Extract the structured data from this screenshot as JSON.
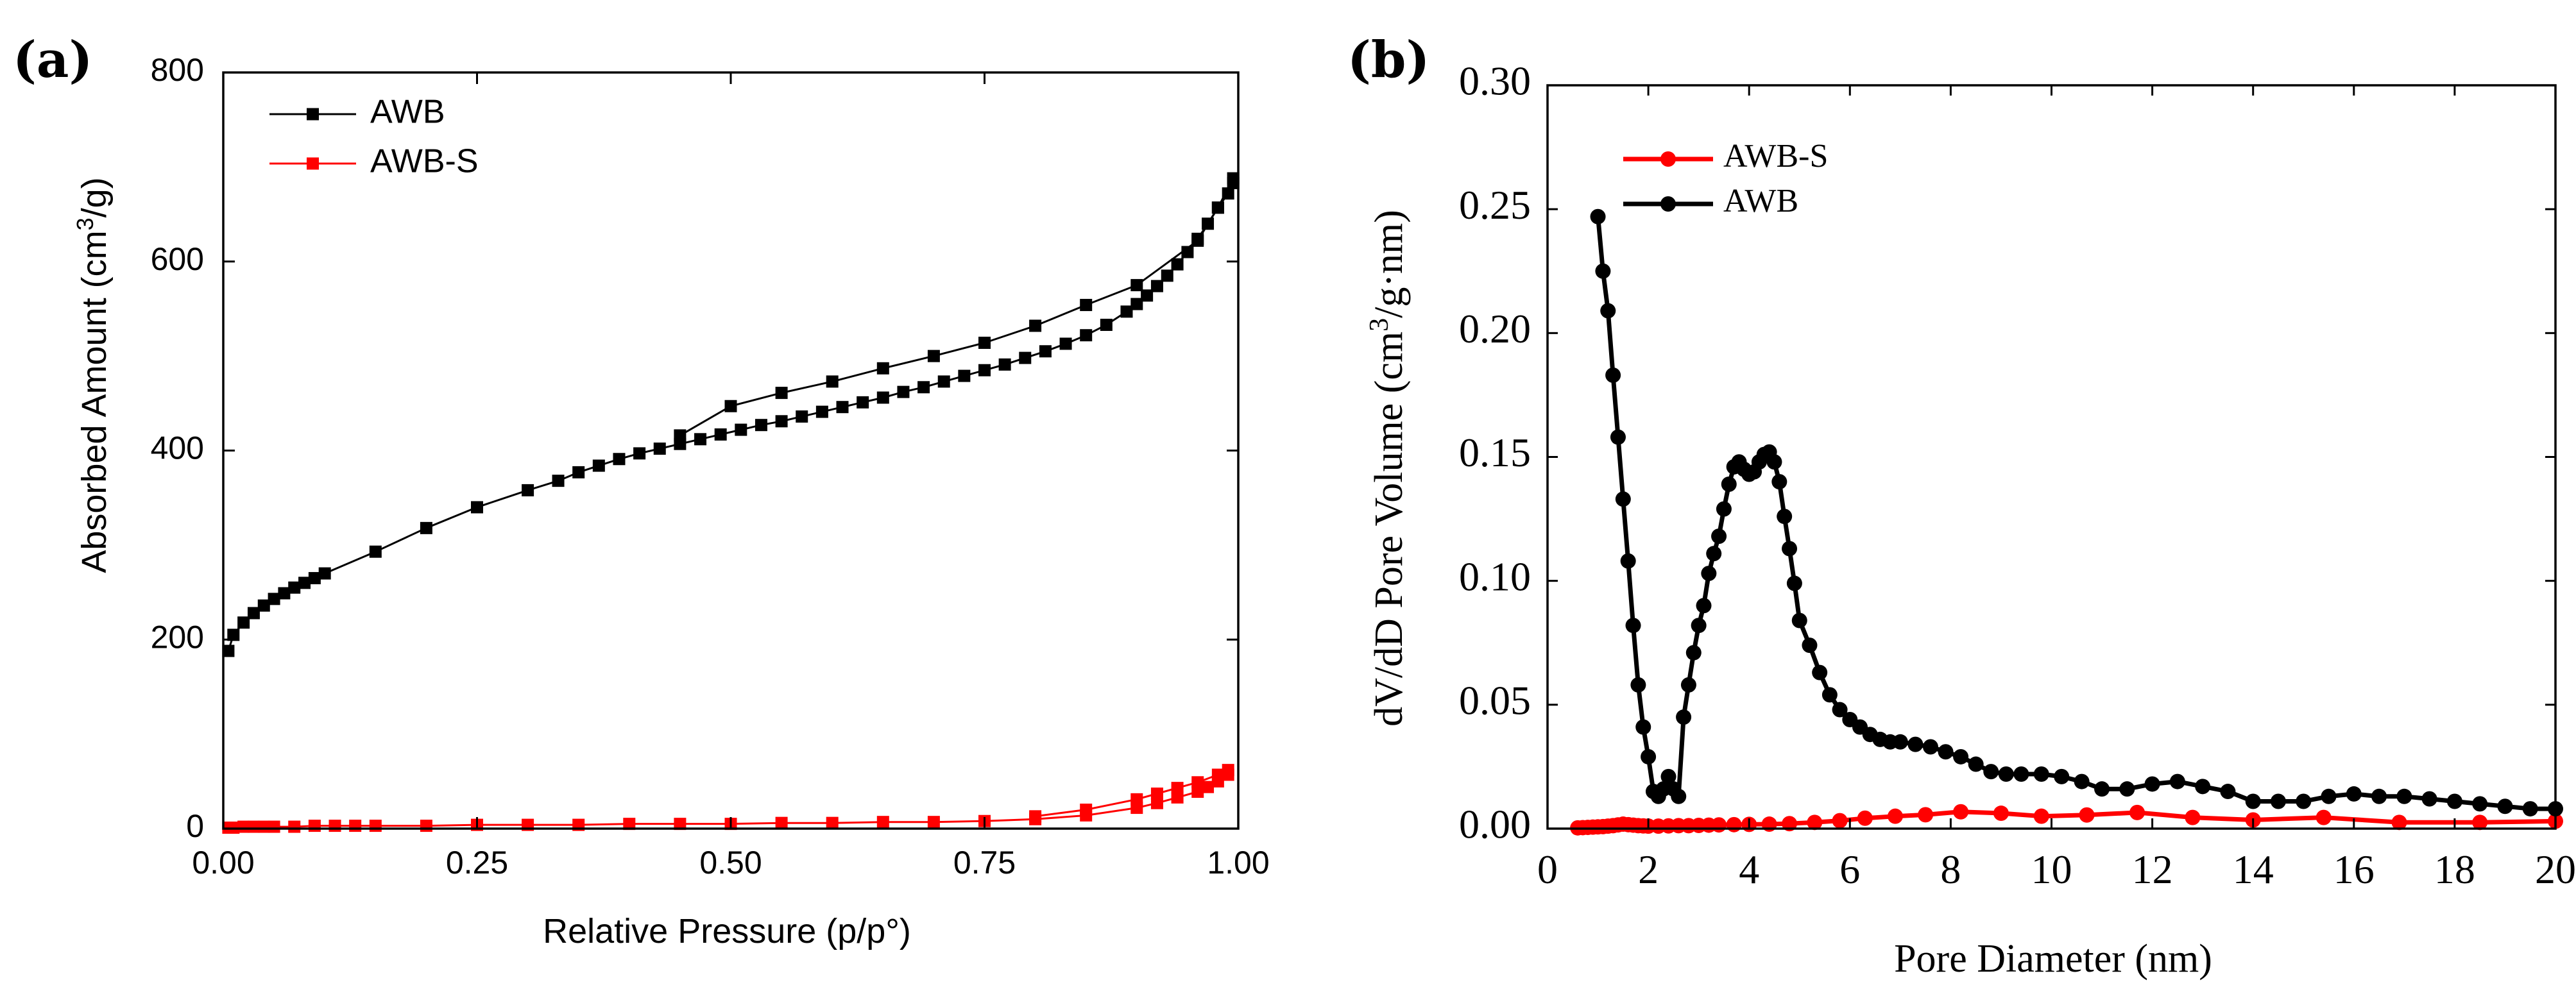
{
  "chart_data": [
    {
      "panel_label": "(a)",
      "type": "line",
      "title": "",
      "xlabel": "Relative Pressure (p/p°)",
      "ylabel_main": "Absorbed Amount (cm",
      "ylabel_sup": "3",
      "ylabel_tail": "/g)",
      "xlim": [
        0,
        1
      ],
      "ylim": [
        0,
        800
      ],
      "xticks": [
        0,
        0.25,
        0.5,
        0.75,
        1.0
      ],
      "xtick_labels": [
        "0.00",
        "0.25",
        "0.50",
        "0.75",
        "1.00"
      ],
      "yticks": [
        0,
        200,
        400,
        600,
        800
      ],
      "ytick_labels": [
        "0",
        "200",
        "400",
        "600",
        "800"
      ],
      "grid": false,
      "legend_position": "top-left",
      "series": [
        {
          "name": "AWB",
          "color": "#000000",
          "marker": "square",
          "branches": [
            {
              "x": [
                0.005,
                0.01,
                0.02,
                0.03,
                0.04,
                0.05,
                0.06,
                0.07,
                0.08,
                0.09,
                0.1,
                0.15,
                0.2,
                0.25,
                0.3,
                0.33,
                0.35,
                0.37,
                0.39,
                0.41,
                0.43,
                0.45,
                0.47,
                0.49,
                0.51,
                0.53,
                0.55,
                0.57,
                0.59,
                0.61,
                0.63,
                0.65,
                0.67,
                0.69,
                0.71,
                0.73,
                0.75,
                0.77,
                0.79,
                0.81,
                0.83,
                0.85,
                0.87,
                0.89,
                0.9,
                0.91,
                0.92,
                0.93,
                0.94,
                0.95,
                0.96,
                0.97,
                0.98,
                0.99,
                0.995
              ],
              "y": [
                188,
                205,
                218,
                228,
                236,
                243,
                249,
                255,
                260,
                265,
                270,
                293,
                318,
                340,
                358,
                368,
                377,
                384,
                391,
                397,
                402,
                407,
                412,
                417,
                422,
                427,
                431,
                436,
                441,
                446,
                451,
                456,
                462,
                467,
                473,
                479,
                485,
                491,
                498,
                505,
                513,
                522,
                533,
                547,
                555,
                564,
                574,
                585,
                597,
                610,
                624,
                640,
                657,
                672,
                683
              ]
            },
            {
              "x": [
                0.995,
                0.98,
                0.96,
                0.9,
                0.85,
                0.8,
                0.75,
                0.7,
                0.65,
                0.6,
                0.55,
                0.5,
                0.45
              ],
              "y": [
                688,
                657,
                622,
                575,
                554,
                532,
                514,
                500,
                487,
                473,
                461,
                447,
                416
              ]
            }
          ]
        },
        {
          "name": "AWB-S",
          "color": "#ff0000",
          "marker": "square",
          "branches": [
            {
              "x": [
                0.005,
                0.01,
                0.02,
                0.03,
                0.04,
                0.05,
                0.07,
                0.09,
                0.11,
                0.13,
                0.15,
                0.2,
                0.25,
                0.3,
                0.35,
                0.4,
                0.45,
                0.5,
                0.55,
                0.6,
                0.65,
                0.7,
                0.75,
                0.8,
                0.85,
                0.9,
                0.92,
                0.94,
                0.96,
                0.97,
                0.98,
                0.99
              ],
              "y": [
                1,
                1,
                2,
                2,
                2,
                2,
                2,
                3,
                3,
                3,
                3,
                3,
                4,
                4,
                4,
                5,
                5,
                5,
                6,
                6,
                7,
                7,
                8,
                10,
                14,
                22,
                27,
                33,
                39,
                44,
                50,
                57
              ]
            },
            {
              "x": [
                0.99,
                0.98,
                0.96,
                0.94,
                0.92,
                0.9,
                0.85,
                0.8
              ],
              "y": [
                62,
                57,
                49,
                43,
                37,
                31,
                20,
                13
              ]
            }
          ]
        }
      ]
    },
    {
      "panel_label": "(b)",
      "type": "line",
      "title": "",
      "xlabel": "Pore Diameter (nm)",
      "ylabel_main": "dV/dD Pore Volume (cm",
      "ylabel_sup": "3",
      "ylabel_tail": "/g·nm)",
      "xlim": [
        0,
        20
      ],
      "ylim": [
        0,
        0.3
      ],
      "xticks": [
        0,
        2,
        4,
        6,
        8,
        10,
        12,
        14,
        16,
        18,
        20
      ],
      "xtick_labels": [
        "0",
        "2",
        "4",
        "6",
        "8",
        "10",
        "12",
        "14",
        "16",
        "18",
        "20"
      ],
      "yticks": [
        0,
        0.05,
        0.1,
        0.15,
        0.2,
        0.25,
        0.3
      ],
      "ytick_labels": [
        "0.00",
        "0.05",
        "0.10",
        "0.15",
        "0.20",
        "0.25",
        "0.30"
      ],
      "grid": false,
      "legend_position": "top-left",
      "series": [
        {
          "name": "AWB-S",
          "color": "#ff0000",
          "marker": "circle",
          "branches": [
            {
              "x": [
                0.6,
                0.7,
                0.8,
                0.9,
                1.0,
                1.1,
                1.2,
                1.3,
                1.4,
                1.5,
                1.6,
                1.7,
                1.8,
                1.9,
                2.0,
                2.2,
                2.4,
                2.6,
                2.8,
                3.0,
                3.2,
                3.4,
                3.7,
                4.0,
                4.4,
                4.8,
                5.3,
                5.8,
                6.3,
                6.9,
                7.5,
                8.2,
                9.0,
                9.8,
                10.7,
                11.7,
                12.8,
                14.0,
                15.4,
                16.9,
                18.5,
                20.0
              ],
              "y": [
                0.0003,
                0.0004,
                0.0005,
                0.0006,
                0.0007,
                0.0008,
                0.001,
                0.0012,
                0.0015,
                0.0018,
                0.0016,
                0.0014,
                0.0012,
                0.0011,
                0.001,
                0.001,
                0.0011,
                0.0012,
                0.0012,
                0.0013,
                0.0014,
                0.0015,
                0.0016,
                0.0017,
                0.0018,
                0.002,
                0.0025,
                0.0032,
                0.0042,
                0.005,
                0.0056,
                0.0068,
                0.0062,
                0.005,
                0.0055,
                0.0065,
                0.0045,
                0.0035,
                0.0045,
                0.0025,
                0.0025,
                0.003
              ]
            }
          ]
        },
        {
          "name": "AWB",
          "color": "#000000",
          "marker": "circle",
          "branches": [
            {
              "x": [
                1.0,
                1.1,
                1.2,
                1.3,
                1.4,
                1.5,
                1.6,
                1.7,
                1.8,
                1.9,
                2.0,
                2.1,
                2.2,
                2.3,
                2.4,
                2.5,
                2.6,
                2.7,
                2.8,
                2.9,
                3.0,
                3.1,
                3.2,
                3.3,
                3.4,
                3.5,
                3.6,
                3.7,
                3.8,
                3.9,
                4.0,
                4.1,
                4.2,
                4.3,
                4.4,
                4.5,
                4.6,
                4.7,
                4.8,
                4.9,
                5.0,
                5.2,
                5.4,
                5.6,
                5.8,
                6.0,
                6.2,
                6.4,
                6.6,
                6.8,
                7.0,
                7.3,
                7.6,
                7.9,
                8.2,
                8.5,
                8.8,
                9.1,
                9.4,
                9.8,
                10.2,
                10.6,
                11.0,
                11.5,
                12.0,
                12.5,
                13.0,
                13.5,
                14.0,
                14.5,
                15.0,
                15.5,
                16.0,
                16.5,
                17.0,
                17.5,
                18.0,
                18.5,
                19.0,
                19.5,
                20.0
              ],
              "y": [
                0.247,
                0.225,
                0.209,
                0.183,
                0.158,
                0.133,
                0.108,
                0.082,
                0.058,
                0.041,
                0.029,
                0.015,
                0.013,
                0.016,
                0.021,
                0.016,
                0.013,
                0.045,
                0.058,
                0.071,
                0.082,
                0.09,
                0.103,
                0.111,
                0.118,
                0.129,
                0.139,
                0.146,
                0.148,
                0.145,
                0.143,
                0.144,
                0.148,
                0.151,
                0.152,
                0.148,
                0.14,
                0.126,
                0.113,
                0.099,
                0.084,
                0.074,
                0.063,
                0.054,
                0.048,
                0.044,
                0.041,
                0.038,
                0.036,
                0.035,
                0.035,
                0.034,
                0.033,
                0.031,
                0.029,
                0.026,
                0.023,
                0.022,
                0.022,
                0.022,
                0.021,
                0.019,
                0.016,
                0.016,
                0.018,
                0.019,
                0.017,
                0.015,
                0.011,
                0.011,
                0.011,
                0.013,
                0.014,
                0.013,
                0.013,
                0.012,
                0.011,
                0.01,
                0.009,
                0.008,
                0.008
              ]
            }
          ]
        }
      ]
    }
  ]
}
